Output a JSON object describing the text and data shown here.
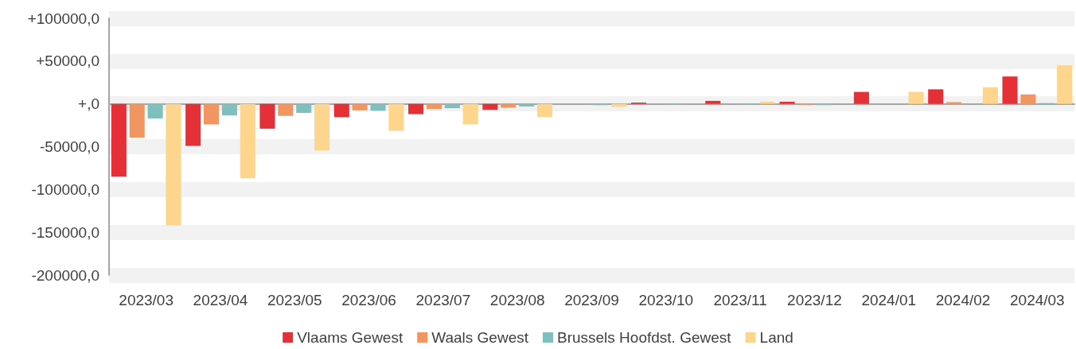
{
  "chart_data": {
    "type": "bar",
    "categories": [
      "2023/03",
      "2023/04",
      "2023/05",
      "2023/06",
      "2023/07",
      "2023/08",
      "2023/09",
      "2023/10",
      "2023/11",
      "2023/12",
      "2024/01",
      "2024/02",
      "2024/03"
    ],
    "series": [
      {
        "name": "Vlaams Gewest",
        "color": "#e63037",
        "values": [
          -85000,
          -49000,
          -29000,
          -15500,
          -12000,
          -7000,
          0,
          1500,
          3500,
          2500,
          14000,
          17000,
          32000
        ]
      },
      {
        "name": "Waals Gewest",
        "color": "#f19660",
        "values": [
          -39500,
          -24000,
          -14000,
          -7500,
          -6000,
          -4500,
          0,
          0,
          0,
          -1500,
          0,
          2000,
          11000
        ]
      },
      {
        "name": "Brussels Hoofdst. Gewest",
        "color": "#7fbfbe",
        "values": [
          -17000,
          -13500,
          -10500,
          -8000,
          -5000,
          -3000,
          -1500,
          -1000,
          -1000,
          -1500,
          0,
          0,
          1000
        ]
      },
      {
        "name": "Land",
        "color": "#fdd58c",
        "values": [
          -142000,
          -87000,
          -54500,
          -31500,
          -24000,
          -15500,
          -3500,
          0,
          2500,
          0,
          14000,
          19500,
          45000
        ]
      }
    ],
    "ylim": [
      -200000,
      100000
    ],
    "yticks": [
      {
        "value": -200000,
        "label": "-200000,0"
      },
      {
        "value": -150000,
        "label": "-150000,0"
      },
      {
        "value": -100000,
        "label": "-100000,0"
      },
      {
        "value": -50000,
        "label": "-50000,0"
      },
      {
        "value": 0,
        "label": "+,0"
      },
      {
        "value": 50000,
        "label": "+50000,0"
      },
      {
        "value": 100000,
        "label": "+100000,0"
      }
    ],
    "grid": "y",
    "legend": "bottom"
  }
}
